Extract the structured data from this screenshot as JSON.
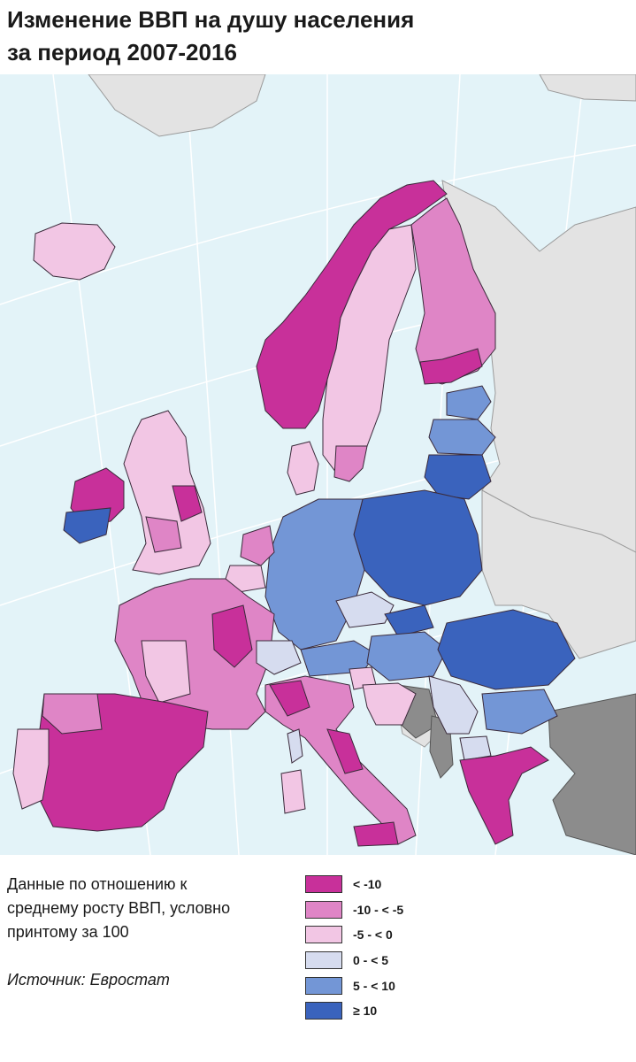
{
  "header": {
    "title_line1": "Изменение ВВП на душу населения",
    "title_line2": "за период 2007-2016"
  },
  "notes": {
    "line1": "Данные по отношению к",
    "line2": "среднему росту ВВП, условно",
    "line3": "принтому за 100",
    "source": "Источник: Евростат"
  },
  "legend": {
    "items": [
      {
        "label": "< -10",
        "color": "#c8309a"
      },
      {
        "label": "-10 - < -5",
        "color": "#df85c6"
      },
      {
        "label": "-5 - < 0",
        "color": "#f2c6e4"
      },
      {
        "label": "0 - < 5",
        "color": "#d6dcef"
      },
      {
        "label": "5 - < 10",
        "color": "#7396d6"
      },
      {
        "label": "≥ 10",
        "color": "#3a63bd"
      }
    ]
  },
  "map": {
    "colors": {
      "sea": "#e3f3f8",
      "non_eu_land": "#e3e3e3",
      "no_data": "#8c8c8c",
      "graticule": "#ffffff",
      "border": "#3a2a3a"
    },
    "regions": [
      {
        "name": "iceland",
        "class": "-5 - < 0"
      },
      {
        "name": "norway",
        "class": "< -10"
      },
      {
        "name": "sweden",
        "class": "-5 - < 0"
      },
      {
        "name": "finland",
        "class": "-10 - < -5"
      },
      {
        "name": "estonia",
        "class": "5 - < 10"
      },
      {
        "name": "latvia",
        "class": "5 - < 10"
      },
      {
        "name": "lithuania",
        "class": "≥ 10"
      },
      {
        "name": "poland",
        "class": "≥ 10"
      },
      {
        "name": "germany",
        "class": "5 - < 10"
      },
      {
        "name": "denmark",
        "class": "-5 - < 0"
      },
      {
        "name": "netherlands",
        "class": "-10 - < -5"
      },
      {
        "name": "belgium",
        "class": "-5 - < 0"
      },
      {
        "name": "united-kingdom",
        "class": "-5 - < 0"
      },
      {
        "name": "ireland",
        "class": "< -10"
      },
      {
        "name": "france",
        "class": "-10 - < -5"
      },
      {
        "name": "switzerland",
        "class": "0 - < 5"
      },
      {
        "name": "austria",
        "class": "5 - < 10"
      },
      {
        "name": "czechia",
        "class": "0 - < 5"
      },
      {
        "name": "slovakia",
        "class": "≥ 10"
      },
      {
        "name": "hungary",
        "class": "5 - < 10"
      },
      {
        "name": "slovenia",
        "class": "-5 - < 0"
      },
      {
        "name": "croatia",
        "class": "-5 - < 0"
      },
      {
        "name": "romania",
        "class": "≥ 10"
      },
      {
        "name": "bulgaria",
        "class": "5 - < 10"
      },
      {
        "name": "serbia",
        "class": "0 - < 5"
      },
      {
        "name": "macedonia",
        "class": "0 - < 5"
      },
      {
        "name": "greece",
        "class": "< -10"
      },
      {
        "name": "italy",
        "class": "< -10"
      },
      {
        "name": "spain",
        "class": "< -10"
      },
      {
        "name": "portugal",
        "class": "-5 - < 0"
      },
      {
        "name": "corsica",
        "class": "0 - < 5"
      },
      {
        "name": "sardinia",
        "class": "-5 - < 0"
      },
      {
        "name": "sicily",
        "class": "< -10"
      },
      {
        "name": "bosnia",
        "class": "no data"
      },
      {
        "name": "montenegro-albania",
        "class": "no data"
      },
      {
        "name": "turkey",
        "class": "no data"
      }
    ]
  }
}
